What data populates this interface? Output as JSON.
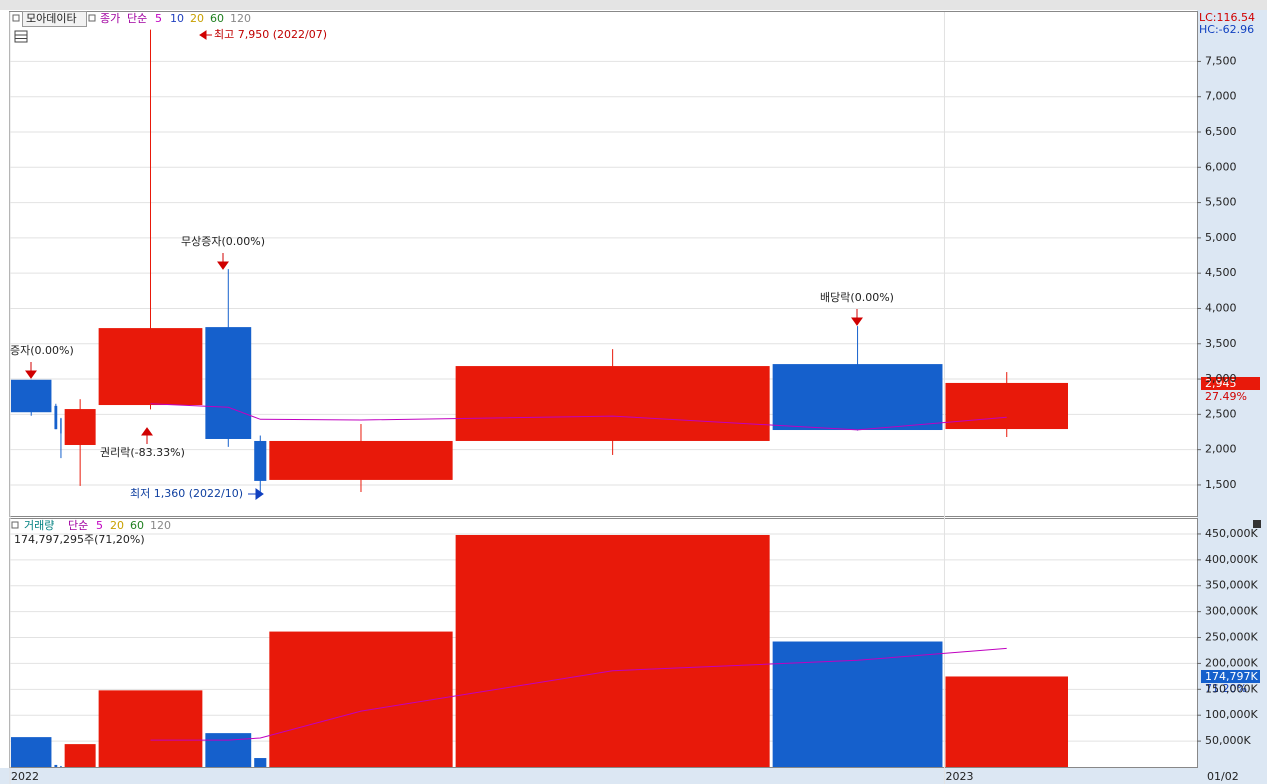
{
  "header": {
    "stock": "모아데이타",
    "price_legend": [
      "종가",
      "단순"
    ],
    "price_ma_periods": [
      "5",
      "10",
      "20",
      "60",
      "120"
    ],
    "volume_legend": [
      "거래량",
      "단순"
    ],
    "volume_ma_periods": [
      "5",
      "20",
      "60",
      "120"
    ],
    "volume_info": "174,797,295주(71,20%)",
    "lc": "LC:116.54",
    "hc": "HC:-62.96",
    "close_label": "2,945",
    "close_pct": "27.49%",
    "volume_label": "174,797K",
    "volume_pct": "71.20%",
    "last_date": "01/02"
  },
  "annotations": {
    "high": "최고 7,950 (2022/07)",
    "bonus": "무상증자(0.00%)",
    "rights": "증자(0.00%)",
    "ex_rights": "권리락(-83.33%)",
    "low": "최저 1,360 (2022/10)",
    "ex_dividend": "배당락(0.00%)"
  },
  "chart_data": {
    "type": "candlestick",
    "up_color": "#e8190a",
    "down_color": "#1560cc",
    "ma_color": "#c000c0",
    "categories": [
      "2022",
      null,
      null,
      null,
      null,
      null,
      null,
      null,
      null,
      null,
      "2023"
    ],
    "open": [
      2990,
      2620,
      2440,
      2066,
      2632,
      3736,
      2123,
      1571,
      2123,
      3212,
      2292
    ],
    "high": [
      2990,
      2650,
      2450,
      2715,
      7950,
      4557,
      2200,
      2363,
      3424,
      3750,
      3099
    ],
    "low": [
      2480,
      2290,
      1880,
      1486,
      2570,
      2040,
      1360,
      1400,
      1925,
      2270,
      2179
    ],
    "close": [
      2530,
      2290,
      2230,
      2575,
      3722,
      2151,
      1557,
      2123,
      3184,
      2278,
      2945
    ],
    "volume": [
      57700,
      4000,
      2000,
      44200,
      148000,
      65400,
      17300,
      261500,
      448000,
      242300,
      174797
    ],
    "price_ma": [
      null,
      null,
      null,
      null,
      2650,
      2600,
      2430,
      2420,
      2475,
      2280,
      2460
    ],
    "volume_ma": [
      null,
      null,
      null,
      null,
      52000,
      52000,
      56000,
      108000,
      186000,
      206000,
      229000
    ],
    "ylim": [
      1060,
      8200
    ],
    "yticks": [
      {
        "value": 1500,
        "label": "1,500"
      },
      {
        "value": 2000,
        "label": "2,000"
      },
      {
        "value": 2500,
        "label": "2,500"
      },
      {
        "value": 3000,
        "label": "3,000"
      },
      {
        "value": 3500,
        "label": "3,500"
      },
      {
        "value": 4000,
        "label": "4,000"
      },
      {
        "value": 4500,
        "label": "4,500"
      },
      {
        "value": 5000,
        "label": "5,000"
      },
      {
        "value": 5500,
        "label": "5,500"
      },
      {
        "value": 6000,
        "label": "6,000"
      },
      {
        "value": 6500,
        "label": "6,500"
      },
      {
        "value": 7000,
        "label": "7,000"
      },
      {
        "value": 7500,
        "label": "7,500"
      }
    ],
    "y2lim": [
      0,
      475000
    ],
    "y2ticks": [
      {
        "value": 50000,
        "label": "50,000K"
      },
      {
        "value": 100000,
        "label": "100,000K"
      },
      {
        "value": 150000,
        "label": "150,000K"
      },
      {
        "value": 200000,
        "label": "200,000K"
      },
      {
        "value": 250000,
        "label": "250,000K"
      },
      {
        "value": 300000,
        "label": "300,000K"
      },
      {
        "value": 350000,
        "label": "350,000K"
      },
      {
        "value": 400000,
        "label": "400,000K"
      },
      {
        "value": 450000,
        "label": "450,000K"
      }
    ],
    "grid": true
  }
}
